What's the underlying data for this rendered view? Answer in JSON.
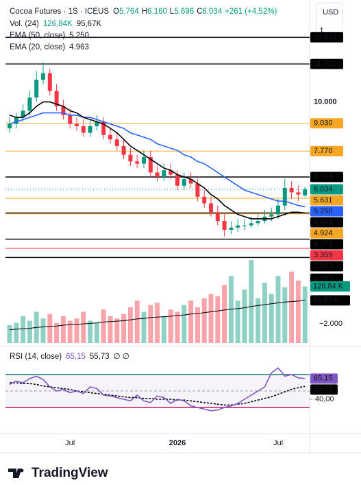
{
  "chart_data": {
    "type": "candlestick",
    "title": "Cocoa Futures · 1S · ICEUS",
    "ohlc_legend": [
      {
        "key": "O",
        "value": "5.764"
      },
      {
        "key": "H",
        "value": "6.160"
      },
      {
        "key": "L",
        "value": "5.696"
      },
      {
        "key": "C",
        "value": "6.034"
      }
    ],
    "change": "+261 (+4,52%)",
    "volume_legend": {
      "name": "Vol. (24)",
      "value": "126,84K",
      "ma": "95,67K"
    },
    "ema_legends": [
      {
        "name": "EMA (50, close)",
        "value": "5.250"
      },
      {
        "name": "EMA (20, close)",
        "value": "4.963"
      }
    ],
    "currency": "USD",
    "currency_sub": "t",
    "brand": "TradingView",
    "up_color": "#089981",
    "down_color": "#f23645",
    "categories": [
      null,
      null,
      null,
      null,
      null,
      null,
      null,
      null,
      null,
      "Jul",
      null,
      null,
      null,
      null,
      null,
      null,
      null,
      null,
      null,
      null,
      null,
      null,
      null,
      null,
      null,
      "2026",
      null,
      null,
      null,
      null,
      null,
      null,
      null,
      null,
      null,
      null,
      null,
      null,
      null,
      null,
      "Jul",
      null,
      null,
      null,
      null
    ],
    "open": [
      8.8,
      9.0,
      9.3,
      9.6,
      10.2,
      11.0,
      11.3,
      10.5,
      9.8,
      9.4,
      9.0,
      8.9,
      8.6,
      8.9,
      9.1,
      8.5,
      8.3,
      8.0,
      7.6,
      7.3,
      7.2,
      7.5,
      6.8,
      6.6,
      6.9,
      6.7,
      6.2,
      6.5,
      6.3,
      5.7,
      5.4,
      5.0,
      4.6,
      4.2,
      4.3,
      4.4,
      4.4,
      4.5,
      4.6,
      4.8,
      4.9,
      5.3,
      6.1,
      5.9,
      5.764
    ],
    "high": [
      9.3,
      9.5,
      9.9,
      10.5,
      11.4,
      11.8,
      11.5,
      10.8,
      10.1,
      9.7,
      9.3,
      9.2,
      9.2,
      9.4,
      9.3,
      8.8,
      8.6,
      8.3,
      7.9,
      7.6,
      7.8,
      7.8,
      7.1,
      7.2,
      7.2,
      6.9,
      6.8,
      6.8,
      6.5,
      6.0,
      5.7,
      5.3,
      4.9,
      4.6,
      4.7,
      4.7,
      4.8,
      4.9,
      5.1,
      5.2,
      5.6,
      6.5,
      6.4,
      6.2,
      6.16
    ],
    "low": [
      8.6,
      8.8,
      9.1,
      9.4,
      10.0,
      10.8,
      10.3,
      9.6,
      9.2,
      8.8,
      8.7,
      8.4,
      8.4,
      8.7,
      8.3,
      8.1,
      7.8,
      7.4,
      7.1,
      7.0,
      7.0,
      6.6,
      6.4,
      6.4,
      6.5,
      6.0,
      6.0,
      6.1,
      5.5,
      5.2,
      4.8,
      4.4,
      3.9,
      4.0,
      4.1,
      4.2,
      4.3,
      4.4,
      4.5,
      4.6,
      4.7,
      5.1,
      5.6,
      5.5,
      5.696
    ],
    "close": [
      9.0,
      9.3,
      9.6,
      10.2,
      11.0,
      11.3,
      10.5,
      9.8,
      9.4,
      9.0,
      8.9,
      8.6,
      8.9,
      9.1,
      8.5,
      8.3,
      8.0,
      7.6,
      7.3,
      7.2,
      7.5,
      6.8,
      6.6,
      6.9,
      6.7,
      6.2,
      6.5,
      6.3,
      5.7,
      5.4,
      5.0,
      4.6,
      4.2,
      4.3,
      4.4,
      4.4,
      4.5,
      4.6,
      4.8,
      4.9,
      5.3,
      6.1,
      5.9,
      5.8,
      6.034
    ],
    "ema_series": [
      {
        "name": "EMA (50, close)",
        "color": "#2962ff",
        "values": [
          9.0,
          9.1,
          9.2,
          9.3,
          9.4,
          9.5,
          9.5,
          9.5,
          9.5,
          9.4,
          9.4,
          9.3,
          9.3,
          9.2,
          9.1,
          9.0,
          8.9,
          8.8,
          8.6,
          8.5,
          8.4,
          8.3,
          8.1,
          8.0,
          7.9,
          7.8,
          7.6,
          7.5,
          7.3,
          7.2,
          7.0,
          6.8,
          6.6,
          6.4,
          6.2,
          6.0,
          5.9,
          5.8,
          5.7,
          5.6,
          5.5,
          5.5,
          5.4,
          5.3,
          5.25
        ]
      },
      {
        "name": "EMA (20, close)",
        "color": "#000000",
        "values": [
          9.4,
          9.3,
          9.3,
          9.5,
          9.8,
          10.0,
          10.0,
          9.9,
          9.8,
          9.6,
          9.5,
          9.3,
          9.2,
          9.1,
          9.0,
          8.8,
          8.6,
          8.3,
          8.0,
          7.8,
          7.6,
          7.4,
          7.2,
          7.0,
          6.9,
          6.7,
          6.6,
          6.5,
          6.3,
          6.1,
          5.8,
          5.6,
          5.3,
          5.1,
          4.9,
          4.8,
          4.7,
          4.7,
          4.7,
          4.7,
          4.8,
          4.9,
          5.0,
          5.0,
          4.963
        ]
      }
    ],
    "ylim": [
      0,
      14
    ],
    "price_labels": [
      {
        "value": 12.931,
        "label": "12.931",
        "color": "#000000",
        "line": true
      },
      {
        "value": 11.722,
        "label": "11.722",
        "color": "#000000",
        "line": true
      },
      {
        "value": 10,
        "label": "10.000",
        "color": null,
        "line": false
      },
      {
        "value": 9.03,
        "label": "9.030",
        "color": "#f5a623",
        "line": true
      },
      {
        "value": 7.77,
        "label": "7.770",
        "color": "#f5a623",
        "line": true
      },
      {
        "value": 6.594,
        "label": "6.594",
        "color": "#000000",
        "line": true
      },
      {
        "value": 6.034,
        "label": "6.034",
        "color": "#089981",
        "line": false
      },
      {
        "value": 5.631,
        "label": "5.631",
        "color": "#f5a623",
        "line": true
      },
      {
        "value": 5.25,
        "label": "5.250",
        "color": "#2962ff",
        "line": false
      },
      {
        "value": 4.963,
        "label": "4.963",
        "color": "#000000",
        "line": true
      },
      {
        "value": 4.924,
        "label": "4.924",
        "color": "#f5a623",
        "line": true
      },
      {
        "value": 3.775,
        "label": "3.775",
        "color": "#000000",
        "line": true
      },
      {
        "value": 3.359,
        "label": "3.359",
        "color": "#f23645",
        "line": true
      },
      {
        "value": 2.943,
        "label": "2.943",
        "color": "#000000",
        "line": true
      },
      {
        "value": 1.983,
        "label": "1.983",
        "color": "#000000",
        "line": false
      }
    ],
    "volume": [
      40,
      45,
      60,
      50,
      70,
      55,
      65,
      45,
      60,
      50,
      55,
      70,
      50,
      45,
      75,
      60,
      55,
      65,
      80,
      95,
      70,
      85,
      90,
      60,
      75,
      70,
      85,
      95,
      80,
      100,
      110,
      105,
      130,
      150,
      95,
      120,
      186,
      100,
      135,
      110,
      150,
      125,
      160,
      140,
      126.84
    ],
    "volume_ma": [
      30,
      31,
      32,
      33,
      35,
      36,
      37,
      38,
      40,
      41,
      42,
      43,
      44,
      45,
      47,
      48,
      49,
      50,
      52,
      54,
      55,
      57,
      58,
      59,
      60,
      62,
      63,
      65,
      66,
      68,
      70,
      72,
      74,
      76,
      77,
      79,
      82,
      84,
      86,
      88,
      90,
      92,
      93,
      94,
      95.67
    ],
    "volume_ylim": [
      0,
      200
    ],
    "volume_labels": [
      {
        "value": 126.84,
        "label": "126,84 K",
        "color": "#089981"
      },
      {
        "value": 95.67,
        "label": "95,67 K",
        "color": "#000000"
      }
    ],
    "volume_axis_label": "−2.000",
    "rsi": {
      "legend": "RSI (14, close)",
      "legend_value": "65,15",
      "legend_ma": "55,73",
      "legend_extra": "∅  ∅",
      "values": [
        58,
        62,
        60,
        65,
        68,
        64,
        55,
        50,
        52,
        48,
        50,
        47,
        55,
        53,
        45,
        44,
        42,
        40,
        38,
        45,
        38,
        36,
        44,
        42,
        35,
        40,
        38,
        32,
        30,
        28,
        26,
        27,
        30,
        32,
        35,
        40,
        45,
        50,
        55,
        72,
        78,
        68,
        70,
        66,
        65.15
      ],
      "ma": [
        60,
        60,
        59,
        59,
        58,
        56,
        55,
        54,
        53,
        52,
        50,
        49,
        48,
        47,
        46,
        45,
        44,
        43,
        42,
        42,
        41,
        41,
        40,
        40,
        40,
        39,
        39,
        38,
        37,
        36,
        35,
        34,
        33,
        33,
        34,
        35,
        37,
        39,
        41,
        43,
        46,
        49,
        52,
        54,
        55.73
      ],
      "color": "#7e57c2",
      "ma_color": "#000000",
      "ylim": [
        0,
        100
      ],
      "bands": [
        {
          "value": 70,
          "color": "#0a7a6a"
        },
        {
          "value": 50,
          "color": "#9e9e9e"
        },
        {
          "value": 30,
          "color": "#c2185b"
        }
      ],
      "labels": [
        {
          "value": 65.15,
          "label": "65,15",
          "color": "#7e57c2"
        },
        {
          "value": 55.73,
          "label": "55,73",
          "color": "#000000"
        }
      ],
      "yticks": [
        {
          "value": 40,
          "label": "40,00"
        }
      ]
    }
  }
}
